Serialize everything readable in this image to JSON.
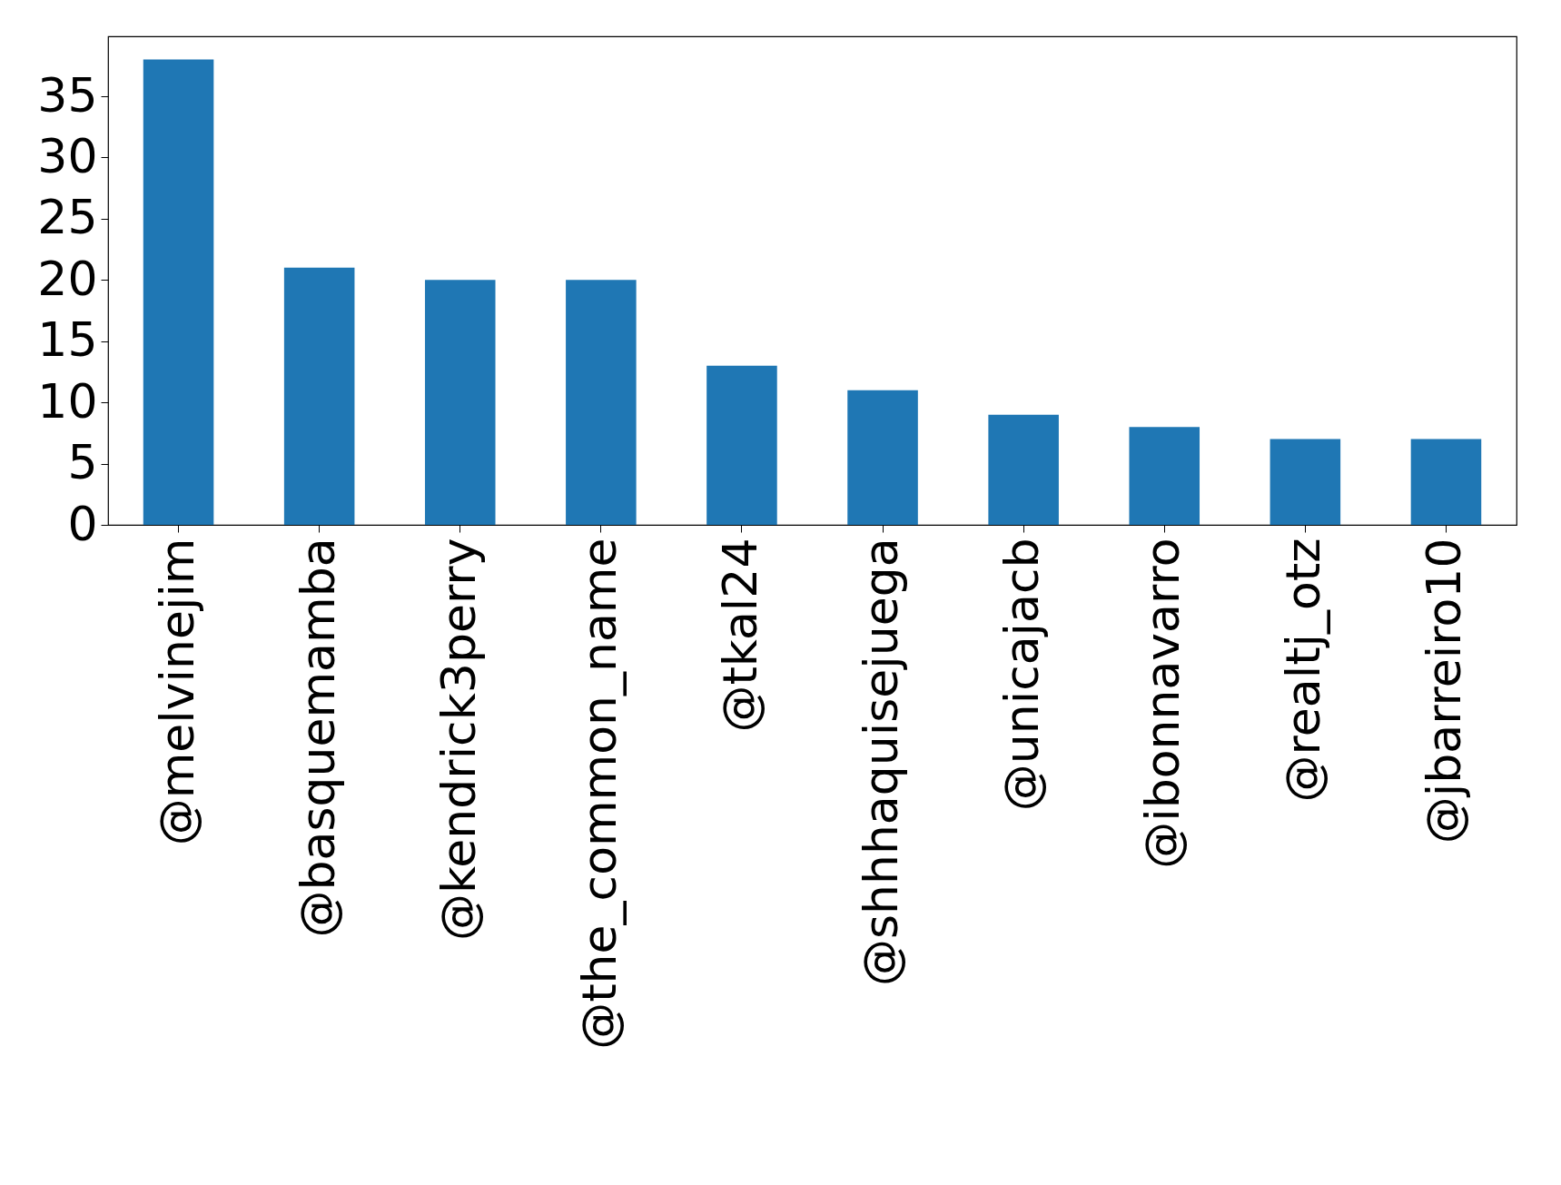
{
  "chart_data": {
    "type": "bar",
    "categories": [
      "@melvinejim",
      "@basquemamba",
      "@kendrick3perry",
      "@the_common_name",
      "@tkal24",
      "@shhhaquisejuega",
      "@unicajacb",
      "@ibonnavarro",
      "@realtj_otz",
      "@jbarreiro10"
    ],
    "values": [
      38,
      21,
      20,
      20,
      13,
      11,
      9,
      8,
      7,
      7
    ],
    "color": "#1f77b4",
    "ylim": [
      0,
      39.9
    ],
    "yticks": [
      0,
      5,
      10,
      15,
      20,
      25,
      30,
      35
    ],
    "grid": false
  }
}
